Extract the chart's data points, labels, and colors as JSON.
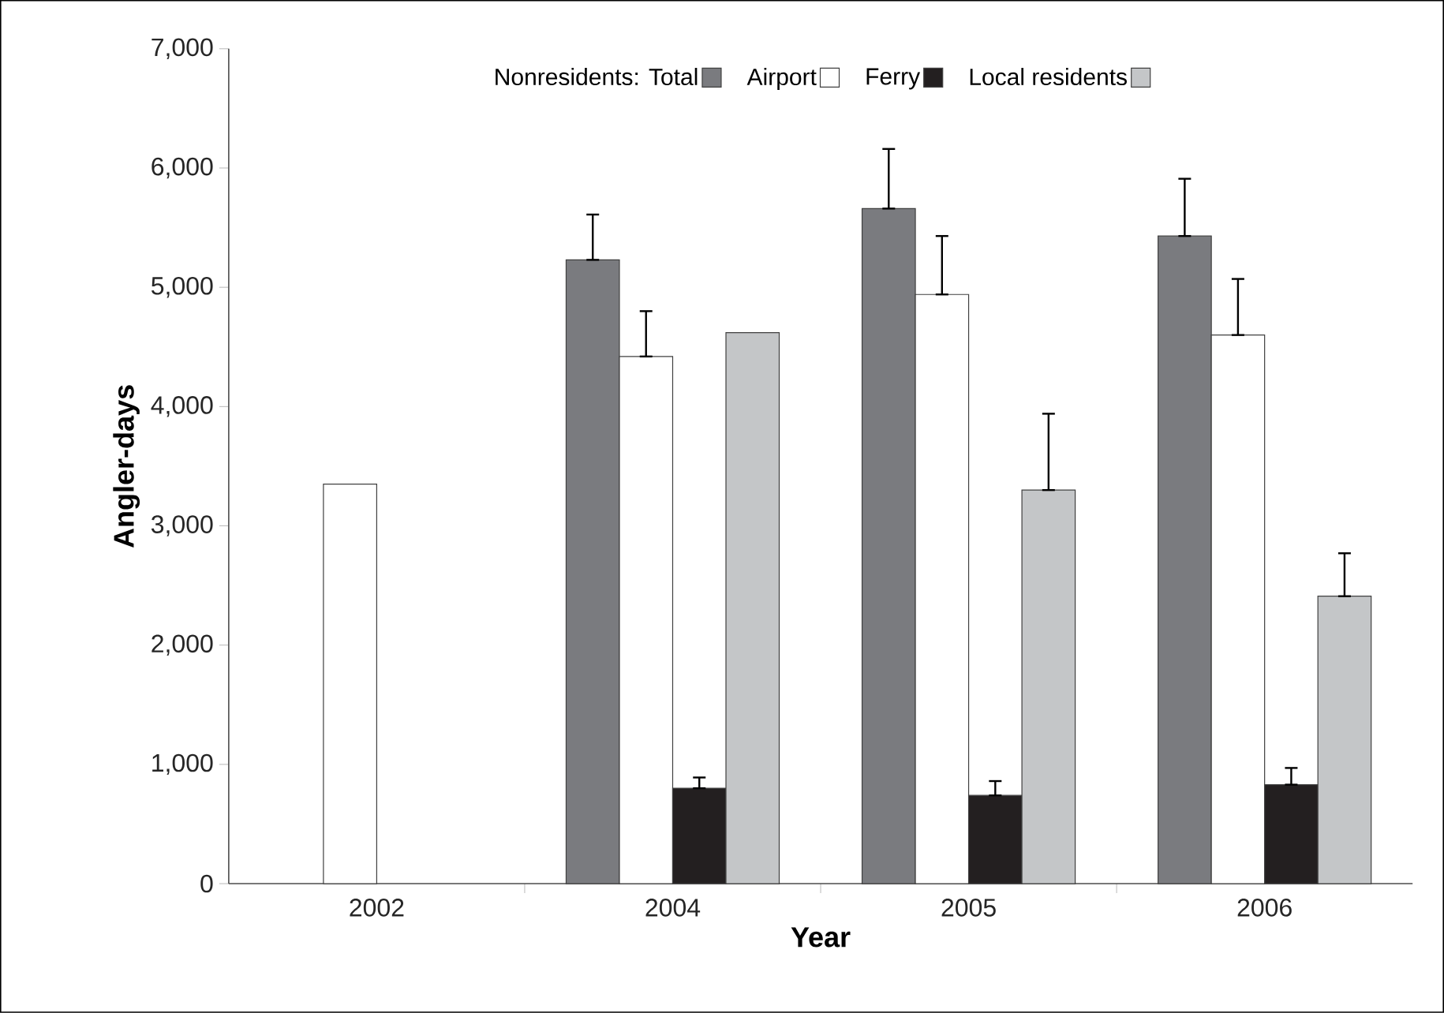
{
  "chart_data": {
    "type": "bar",
    "xlabel": "Year",
    "ylabel": "Angler-days",
    "categories": [
      "2002",
      "2004",
      "2005",
      "2006"
    ],
    "series": [
      {
        "name": "Nonresidents: Total",
        "color": "#7a7b7f",
        "values": [
          null,
          5230,
          5660,
          5430
        ],
        "errors": [
          null,
          [
            5230,
            5610
          ],
          [
            5660,
            6160
          ],
          [
            5430,
            5910
          ]
        ]
      },
      {
        "name": "Airport",
        "color": "#ffffff",
        "values": [
          3350,
          4420,
          4940,
          4600
        ],
        "errors": [
          null,
          [
            4420,
            4800
          ],
          [
            4940,
            5430
          ],
          [
            4600,
            5070
          ]
        ]
      },
      {
        "name": "Ferry",
        "color": "#231f20",
        "values": [
          null,
          800,
          740,
          830
        ],
        "errors": [
          null,
          [
            800,
            890
          ],
          [
            740,
            860
          ],
          [
            830,
            970
          ]
        ]
      },
      {
        "name": "Local residents",
        "color": "#c4c6c8",
        "values": [
          null,
          4620,
          3300,
          2410
        ],
        "errors": [
          null,
          null,
          [
            3300,
            3940
          ],
          [
            2410,
            2770
          ]
        ]
      }
    ],
    "ylim": [
      0,
      7000
    ],
    "yticks": [
      {
        "value": 0,
        "label": "0"
      },
      {
        "value": 1000,
        "label": "1,000"
      },
      {
        "value": 2000,
        "label": "2,000"
      },
      {
        "value": 3000,
        "label": "3,000"
      },
      {
        "value": 4000,
        "label": "4,000"
      },
      {
        "value": 5000,
        "label": "5,000"
      },
      {
        "value": 6000,
        "label": "6,000"
      },
      {
        "value": 7000,
        "label": "7,000"
      }
    ],
    "legend": "top",
    "grid": false
  }
}
